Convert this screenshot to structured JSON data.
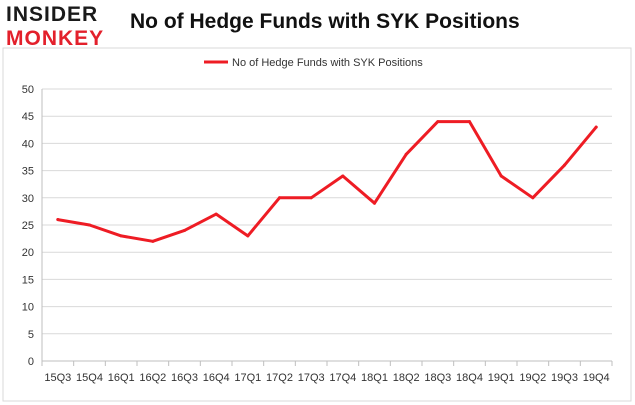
{
  "logo": {
    "line1": "INSIDER",
    "line2": "MONKEY"
  },
  "chart_data": {
    "type": "line",
    "title": "No of Hedge Funds with SYK Positions",
    "categories": [
      "15Q3",
      "15Q4",
      "16Q1",
      "16Q2",
      "16Q3",
      "16Q4",
      "17Q1",
      "17Q2",
      "17Q3",
      "17Q4",
      "18Q1",
      "18Q2",
      "18Q3",
      "18Q4",
      "19Q1",
      "19Q2",
      "19Q3",
      "19Q4"
    ],
    "series": [
      {
        "name": "No of Hedge Funds with SYK Positions",
        "values": [
          26,
          25,
          23,
          22,
          24,
          27,
          23,
          30,
          30,
          34,
          29,
          38,
          44,
          44,
          34,
          30,
          36,
          43
        ],
        "color": "#ee1c24"
      }
    ],
    "ylim": [
      0,
      50
    ],
    "yticks": [
      0,
      5,
      10,
      15,
      20,
      25,
      30,
      35,
      40,
      45,
      50
    ],
    "grid": true,
    "legend": "top-center"
  }
}
